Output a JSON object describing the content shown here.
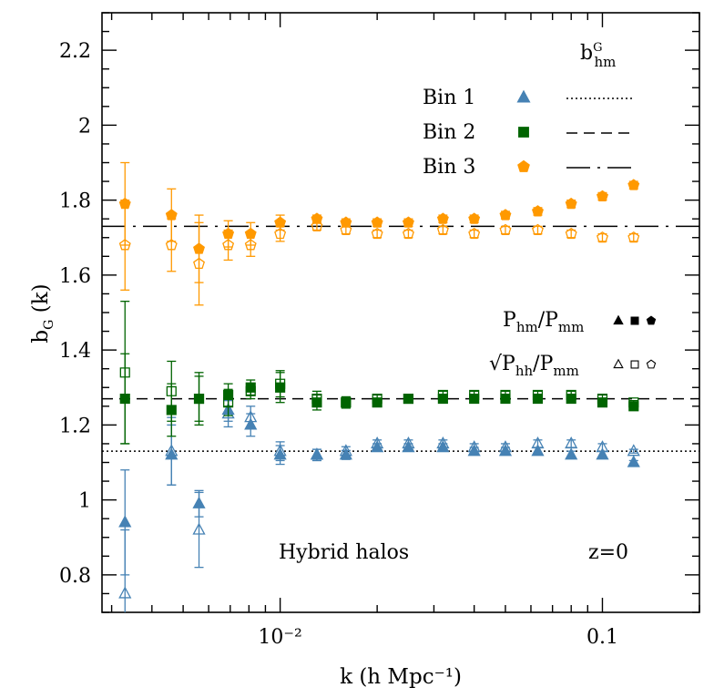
{
  "chart_data": {
    "type": "scatter",
    "x_scale": "log",
    "xlim": [
      0.0028,
      0.2
    ],
    "ylim": [
      0.7,
      2.3
    ],
    "xlabel": "k (h Mpc⁻¹)",
    "ylabel": "b_G (k)",
    "x_ticks": [
      {
        "value": 0.01,
        "label": "10⁻²"
      },
      {
        "value": 0.1,
        "label": "0.1"
      }
    ],
    "y_ticks": [
      {
        "value": 0.8,
        "label": "0.8"
      },
      {
        "value": 1.0,
        "label": "1"
      },
      {
        "value": 1.2,
        "label": "1.2"
      },
      {
        "value": 1.4,
        "label": "1.4"
      },
      {
        "value": 1.6,
        "label": "1.6"
      },
      {
        "value": 1.8,
        "label": "1.8"
      },
      {
        "value": 2.0,
        "label": "2"
      },
      {
        "value": 2.2,
        "label": "2.2"
      }
    ],
    "grid": false,
    "legend_placement": "top-right",
    "legend_title": "b^G_hm",
    "estimator_legend": [
      {
        "label_main": "P",
        "sub1": "hm",
        "mid": "/P",
        "sub2": "mm",
        "fill": "filled"
      },
      {
        "label_main": "√P",
        "sub1": "hh",
        "mid": "/P",
        "sub2": "mm",
        "fill": "open"
      }
    ],
    "annotations": [
      "Hybrid halos",
      "z=0"
    ],
    "series": [
      {
        "name": "Bin 1",
        "color": "#4682b4",
        "marker": "triangle",
        "line_style": "dotted",
        "reference_value": 1.13,
        "hm": {
          "x": [
            0.0033,
            0.0046,
            0.0056,
            0.0069,
            0.0081,
            0.01,
            0.013,
            0.016,
            0.02,
            0.025,
            0.032,
            0.04,
            0.05,
            0.063,
            0.08,
            0.1,
            0.125
          ],
          "y": [
            0.94,
            1.12,
            0.99,
            1.24,
            1.2,
            1.12,
            1.12,
            1.12,
            1.14,
            1.14,
            1.14,
            1.13,
            1.13,
            1.13,
            1.12,
            1.12,
            1.1
          ],
          "err": [
            0.14,
            0.08,
            0.035,
            0.03,
            0.03,
            0.025,
            0.015,
            0.012,
            0.01,
            0.01,
            0.01,
            0.01,
            0.01,
            0.01,
            0.01,
            0.01,
            0.005
          ]
        },
        "hh": {
          "x": [
            0.0033,
            0.0046,
            0.0056,
            0.0069,
            0.0081,
            0.01,
            0.013,
            0.016,
            0.02,
            0.025,
            0.032,
            0.04,
            0.05,
            0.063,
            0.08,
            0.1,
            0.125
          ],
          "y": [
            0.75,
            1.13,
            0.92,
            1.23,
            1.22,
            1.13,
            1.12,
            1.13,
            1.15,
            1.15,
            1.15,
            1.14,
            1.14,
            1.15,
            1.15,
            1.14,
            1.13
          ],
          "err": [
            0.17,
            0.09,
            0.1,
            0.035,
            0.03,
            0.025,
            0.015,
            0.012,
            0.01,
            0.01,
            0.01,
            0.01,
            0.01,
            0.01,
            0.01,
            0.01,
            0.005
          ]
        }
      },
      {
        "name": "Bin 2",
        "color": "#006400",
        "marker": "square",
        "line_style": "dashed",
        "reference_value": 1.27,
        "hm": {
          "x": [
            0.0033,
            0.0046,
            0.0056,
            0.0069,
            0.0081,
            0.01,
            0.013,
            0.016,
            0.02,
            0.025,
            0.032,
            0.04,
            0.05,
            0.063,
            0.08,
            0.1,
            0.125
          ],
          "y": [
            1.27,
            1.24,
            1.27,
            1.28,
            1.3,
            1.3,
            1.26,
            1.26,
            1.26,
            1.27,
            1.27,
            1.27,
            1.27,
            1.27,
            1.27,
            1.26,
            1.25
          ],
          "err": [
            0.12,
            0.07,
            0.06,
            0.03,
            0.02,
            0.04,
            0.02,
            0.015,
            0.01,
            0.01,
            0.01,
            0.01,
            0.01,
            0.01,
            0.01,
            0.01,
            0.005
          ]
        },
        "hh": {
          "x": [
            0.0033,
            0.0046,
            0.0056,
            0.0069,
            0.0081,
            0.01,
            0.013,
            0.016,
            0.02,
            0.025,
            0.032,
            0.04,
            0.05,
            0.063,
            0.08,
            0.1,
            0.125
          ],
          "y": [
            1.34,
            1.29,
            1.27,
            1.26,
            1.29,
            1.31,
            1.27,
            1.26,
            1.27,
            1.27,
            1.28,
            1.28,
            1.28,
            1.28,
            1.28,
            1.27,
            1.26
          ],
          "err": [
            0.19,
            0.08,
            0.07,
            0.035,
            0.02,
            0.035,
            0.02,
            0.015,
            0.01,
            0.01,
            0.01,
            0.01,
            0.01,
            0.01,
            0.01,
            0.01,
            0.005
          ]
        }
      },
      {
        "name": "Bin 3",
        "color": "#ff9900",
        "marker": "pentagon",
        "line_style": "long-dash-dot",
        "reference_value": 1.73,
        "hm": {
          "x": [
            0.0033,
            0.0046,
            0.0056,
            0.0069,
            0.0081,
            0.01,
            0.013,
            0.016,
            0.02,
            0.025,
            0.032,
            0.04,
            0.05,
            0.063,
            0.08,
            0.1,
            0.125
          ],
          "y": [
            1.79,
            1.76,
            1.67,
            1.71,
            1.71,
            1.74,
            1.75,
            1.74,
            1.74,
            1.74,
            1.75,
            1.75,
            1.76,
            1.77,
            1.79,
            1.81,
            1.84
          ],
          "err": [
            0.11,
            0.07,
            0.09,
            0.035,
            0.03,
            0.02,
            0.01,
            0.01,
            0.01,
            0.01,
            0.01,
            0.01,
            0.01,
            0.01,
            0.01,
            0.01,
            0.01
          ]
        },
        "hh": {
          "x": [
            0.0033,
            0.0046,
            0.0056,
            0.0069,
            0.0081,
            0.01,
            0.013,
            0.016,
            0.02,
            0.025,
            0.032,
            0.04,
            0.05,
            0.063,
            0.08,
            0.1,
            0.125
          ],
          "y": [
            1.68,
            1.68,
            1.63,
            1.68,
            1.68,
            1.71,
            1.73,
            1.72,
            1.71,
            1.71,
            1.72,
            1.71,
            1.72,
            1.72,
            1.71,
            1.7,
            1.7
          ],
          "err": [
            0.12,
            0.07,
            0.11,
            0.04,
            0.03,
            0.02,
            0.01,
            0.01,
            0.01,
            0.01,
            0.01,
            0.01,
            0.01,
            0.01,
            0.01,
            0.01,
            0.01
          ]
        }
      }
    ]
  }
}
